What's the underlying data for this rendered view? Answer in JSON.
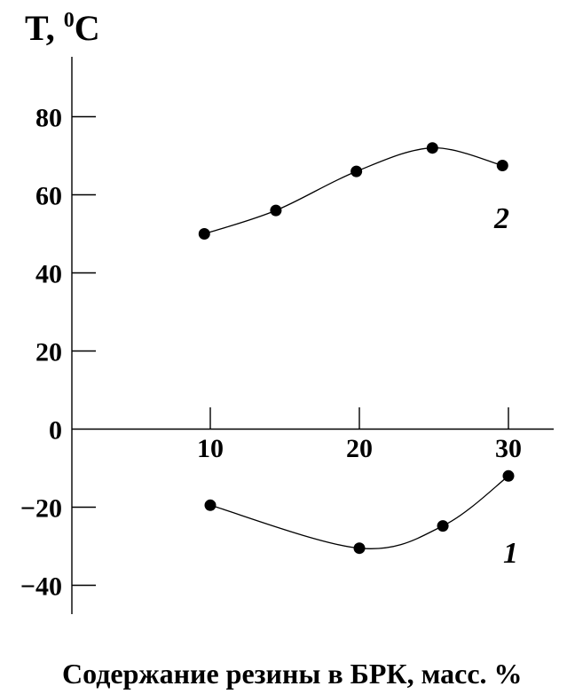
{
  "chart_data": {
    "type": "line",
    "ylabel": {
      "prefix": "T, ",
      "sup": "0",
      "suffix": "C"
    },
    "xlabel": "Содержание резины в БРК, масс. %",
    "xticks": [
      10,
      20,
      30
    ],
    "yticks": [
      80,
      60,
      40,
      20,
      0,
      -20,
      -40
    ],
    "ytick_labels": [
      "80",
      "60",
      "40",
      "20",
      "0",
      "−20",
      "−40"
    ],
    "xlim": [
      0,
      32.5
    ],
    "ylim": [
      -47,
      95
    ],
    "series": [
      {
        "name": "2",
        "x": [
          9.6,
          14.4,
          19.8,
          24.9,
          29.6
        ],
        "y": [
          50,
          56,
          66,
          72,
          67.5
        ]
      },
      {
        "name": "1",
        "x": [
          10,
          20,
          25.6,
          30
        ],
        "y": [
          -19.5,
          -30.5,
          -24.8,
          -12
        ]
      }
    ],
    "grid": false
  }
}
